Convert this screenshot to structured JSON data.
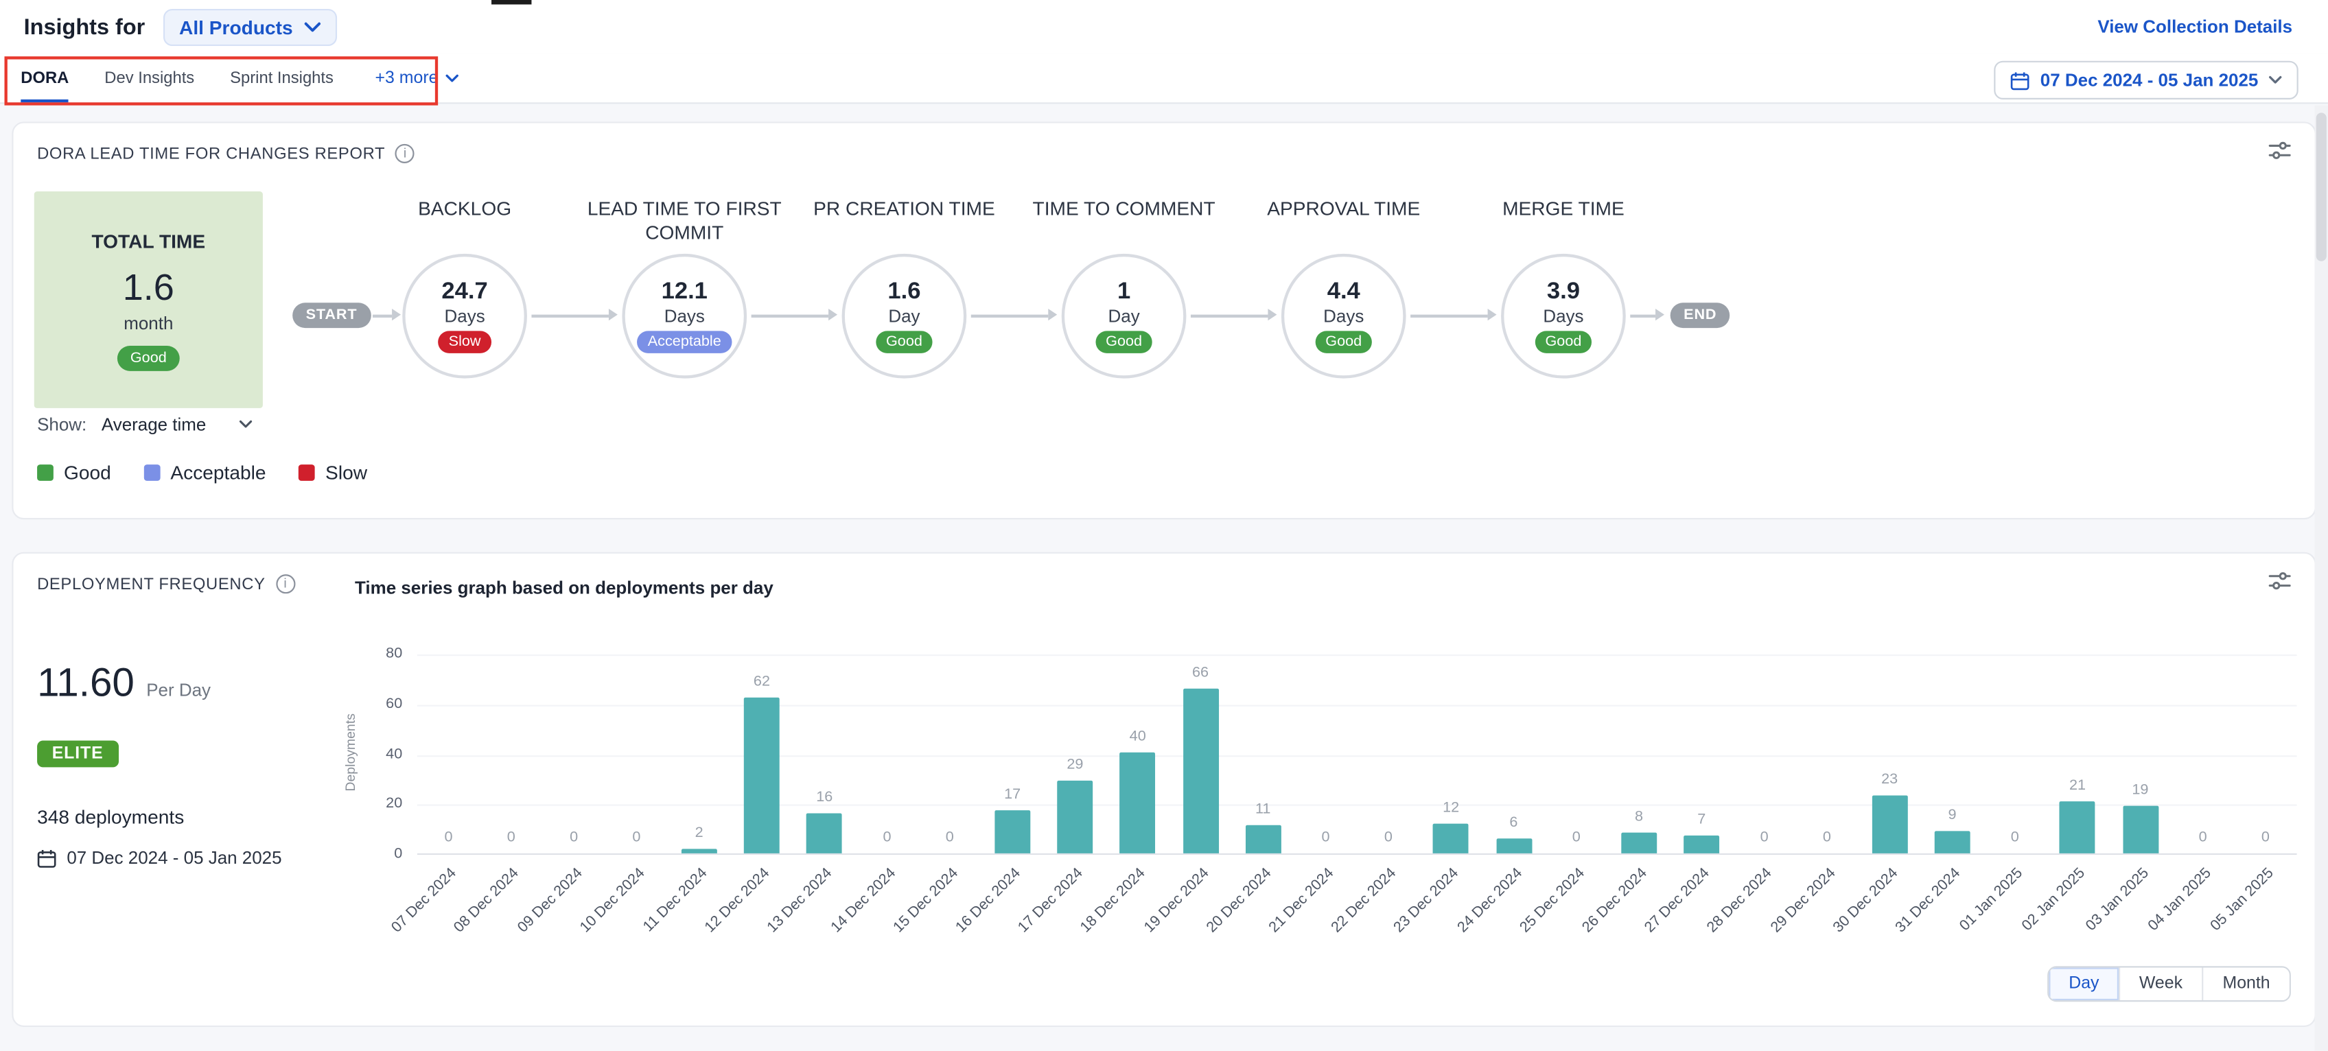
{
  "header": {
    "title": "Insights for",
    "product_selector": "All Products",
    "view_collection_link": "View Collection Details"
  },
  "tabs": {
    "items": [
      {
        "label": "DORA",
        "active": true
      },
      {
        "label": "Dev Insights",
        "active": false
      },
      {
        "label": "Sprint Insights",
        "active": false
      }
    ],
    "more_label": "+3 more"
  },
  "date_range_picker": "07 Dec 2024 - 05 Jan 2025",
  "icons": {
    "info": "i"
  },
  "colors": {
    "accent_blue": "#1a55c8",
    "good": "#43a047",
    "acceptable": "#7b90e6",
    "slow": "#d0202c",
    "elite_badge": "#4c9e31",
    "bar_teal": "#4fb0b2",
    "annotation_red": "#e8392e"
  },
  "lead_time_card": {
    "title": "DORA LEAD TIME FOR CHANGES REPORT",
    "total": {
      "label": "TOTAL TIME",
      "value": "1.6",
      "unit": "month",
      "status": "Good"
    },
    "flow": {
      "start_label": "START",
      "end_label": "END",
      "stages": [
        {
          "name": "BACKLOG",
          "value": "24.7",
          "unit": "Days",
          "status": "Slow"
        },
        {
          "name": "LEAD TIME TO FIRST COMMIT",
          "value": "12.1",
          "unit": "Days",
          "status": "Acceptable"
        },
        {
          "name": "PR CREATION TIME",
          "value": "1.6",
          "unit": "Day",
          "status": "Good"
        },
        {
          "name": "TIME TO COMMENT",
          "value": "1",
          "unit": "Day",
          "status": "Good"
        },
        {
          "name": "APPROVAL TIME",
          "value": "4.4",
          "unit": "Days",
          "status": "Good"
        },
        {
          "name": "MERGE TIME",
          "value": "3.9",
          "unit": "Days",
          "status": "Good"
        }
      ]
    },
    "show_label": "Show:",
    "show_value": "Average time",
    "legend": [
      {
        "label": "Good",
        "color": "#43a047"
      },
      {
        "label": "Acceptable",
        "color": "#7b90e6"
      },
      {
        "label": "Slow",
        "color": "#d0202c"
      }
    ]
  },
  "deployment_card": {
    "title": "DEPLOYMENT FREQUENCY",
    "chart_title": "Time series graph based on deployments per day",
    "rate": {
      "value": "11.60",
      "unit": "Per Day"
    },
    "performance_badge": "ELITE",
    "total_deployments": "348 deployments",
    "date_range": "07 Dec 2024 - 05 Jan 2025",
    "granularity_options": [
      {
        "label": "Day",
        "active": true
      },
      {
        "label": "Week",
        "active": false
      },
      {
        "label": "Month",
        "active": false
      }
    ]
  },
  "chart_data": {
    "type": "bar",
    "title": "Time series graph based on deployments per day",
    "xlabel": "",
    "ylabel": "Deployments",
    "ylim": [
      0,
      80
    ],
    "yticks": [
      0,
      20,
      40,
      60,
      80
    ],
    "grid": false,
    "bar_color": "#4fb0b2",
    "categories": [
      "07 Dec 2024",
      "08 Dec 2024",
      "09 Dec 2024",
      "10 Dec 2024",
      "11 Dec 2024",
      "12 Dec 2024",
      "13 Dec 2024",
      "14 Dec 2024",
      "15 Dec 2024",
      "16 Dec 2024",
      "17 Dec 2024",
      "18 Dec 2024",
      "19 Dec 2024",
      "20 Dec 2024",
      "21 Dec 2024",
      "22 Dec 2024",
      "23 Dec 2024",
      "24 Dec 2024",
      "25 Dec 2024",
      "26 Dec 2024",
      "27 Dec 2024",
      "28 Dec 2024",
      "29 Dec 2024",
      "30 Dec 2024",
      "31 Dec 2024",
      "01 Jan 2025",
      "02 Jan 2025",
      "03 Jan 2025",
      "04 Jan 2025",
      "05 Jan 2025"
    ],
    "values": [
      0,
      0,
      0,
      0,
      2,
      62,
      16,
      0,
      0,
      17,
      29,
      40,
      66,
      11,
      0,
      0,
      12,
      6,
      0,
      8,
      7,
      0,
      0,
      23,
      9,
      0,
      21,
      19,
      0,
      0
    ]
  }
}
